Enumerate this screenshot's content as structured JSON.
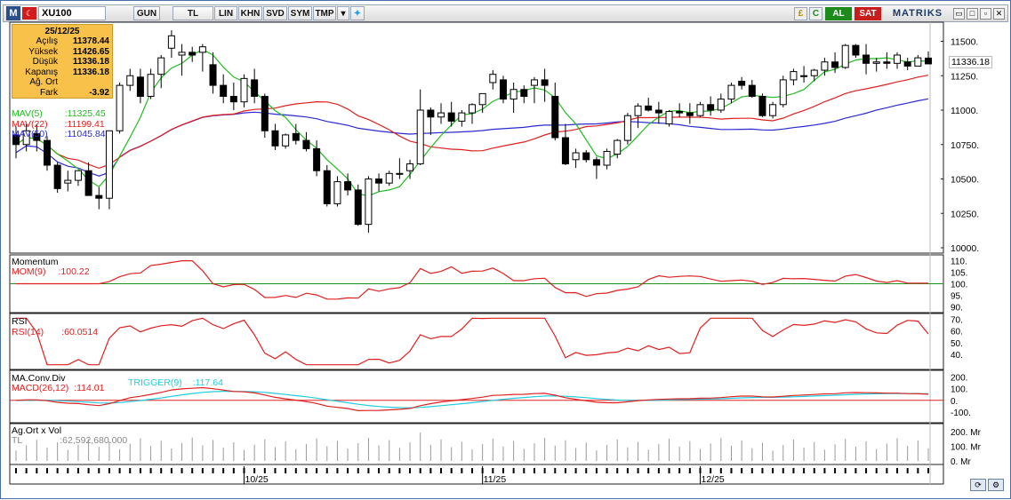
{
  "toolbar": {
    "logo": "M",
    "flag": "☾",
    "symbol": "XU100",
    "buttons": [
      "GUN",
      "TL",
      "LIN",
      "KHN",
      "SVD",
      "SYM",
      "TMP"
    ],
    "right_icons": [
      "£",
      "C"
    ],
    "buy_label": "AL",
    "sell_label": "SAT",
    "brand": "MATRIKS",
    "window_controls": [
      "▭",
      "□",
      "▫",
      "✕"
    ]
  },
  "info_box": {
    "date": "25/12/25",
    "rows": [
      {
        "key": "Açılış",
        "value": "11378.44"
      },
      {
        "key": "Yüksek",
        "value": "11426.65"
      },
      {
        "key": "Düşük",
        "value": "11336.18"
      },
      {
        "key": "Kapanış",
        "value": "11336.18"
      },
      {
        "key": "Ağ. Ort",
        "value": ""
      },
      {
        "key": "Fark",
        "value": "-3.92"
      }
    ]
  },
  "legend": {
    "mav5": {
      "label": "MAV(5)",
      "value": ":11325.45",
      "color": "#22bb22"
    },
    "mav22": {
      "label": "MAV(22)",
      "value": ":11199.41",
      "color": "#e02020"
    },
    "mav50": {
      "label": "MAV(50)",
      "value": ":11045.84",
      "color": "#2a2ad0"
    }
  },
  "last_price": "11336.18",
  "price_axis": [
    "11500.",
    "11250.",
    "11000.",
    "10750.",
    "10500.",
    "10250.",
    "10000."
  ],
  "panels": {
    "momentum": {
      "title": "Momentum",
      "label": "MOM(9)",
      "value": ":100.22",
      "axis": [
        "110.",
        "105.",
        "100.",
        "95.",
        "90."
      ]
    },
    "rsi": {
      "title": "RSI",
      "label": "RSI(14)",
      "value": ":60.0514",
      "axis": [
        "70.",
        "60.",
        "50.",
        "40."
      ]
    },
    "macd": {
      "title": "MA.Conv.Div",
      "label": "MACD(26,12)",
      "value": ":114.01",
      "trigger_label": "TRIGGER(9)",
      "trigger_value": ":117.64",
      "axis": [
        "200.",
        "100.",
        "0.",
        "-100."
      ]
    },
    "volume": {
      "title": "Ag.Ort x Vol",
      "label": "TL",
      "value": ":62,592,680.000",
      "axis": [
        "200. Mr",
        "100. Mr",
        "0. Mr"
      ]
    }
  },
  "date_labels": [
    "10/25",
    "11/25",
    "12/25"
  ],
  "colors": {
    "mav5": "#22bb22",
    "mav22": "#e02020",
    "mav50": "#2a2ad0",
    "trigger": "#22ccdd",
    "grid_green": "#209020",
    "grid_red": "#e02020"
  },
  "chart_data": {
    "type": "candlestick",
    "ylim": [
      10000,
      11600
    ],
    "candles": [
      [
        10820,
        10880,
        10650,
        10750
      ],
      [
        10750,
        10900,
        10700,
        10850
      ],
      [
        10830,
        10900,
        10700,
        10780
      ],
      [
        10780,
        10810,
        10560,
        10600
      ],
      [
        10600,
        10620,
        10400,
        10430
      ],
      [
        10470,
        10560,
        10410,
        10490
      ],
      [
        10490,
        10560,
        10450,
        10560
      ],
      [
        10560,
        10620,
        10380,
        10380
      ],
      [
        10380,
        10440,
        10280,
        10360
      ],
      [
        10360,
        10850,
        10280,
        10850
      ],
      [
        10850,
        11200,
        10830,
        11180
      ],
      [
        11180,
        11300,
        11140,
        11250
      ],
      [
        11240,
        11300,
        11050,
        11100
      ],
      [
        11100,
        11300,
        11080,
        11260
      ],
      [
        11260,
        11400,
        11160,
        11380
      ],
      [
        11450,
        11580,
        11380,
        11540
      ],
      [
        11400,
        11480,
        11250,
        11420
      ],
      [
        11420,
        11460,
        11350,
        11400
      ],
      [
        11420,
        11480,
        11280,
        11460
      ],
      [
        11330,
        11420,
        11120,
        11180
      ],
      [
        11180,
        11260,
        11050,
        11100
      ],
      [
        11100,
        11200,
        11000,
        11060
      ],
      [
        11060,
        11260,
        11020,
        11230
      ],
      [
        11220,
        11300,
        11050,
        11100
      ],
      [
        11100,
        11120,
        10800,
        10850
      ],
      [
        10850,
        10900,
        10710,
        10740
      ],
      [
        10740,
        10830,
        10720,
        10820
      ],
      [
        10830,
        10900,
        10750,
        10780
      ],
      [
        10780,
        10840,
        10700,
        10720
      ],
      [
        10720,
        10780,
        10520,
        10560
      ],
      [
        10560,
        10600,
        10300,
        10320
      ],
      [
        10320,
        10520,
        10300,
        10480
      ],
      [
        10480,
        10540,
        10380,
        10420
      ],
      [
        10420,
        10460,
        10160,
        10170
      ],
      [
        10170,
        10520,
        10110,
        10500
      ],
      [
        10500,
        10540,
        10410,
        10470
      ],
      [
        10470,
        10560,
        10450,
        10540
      ],
      [
        10540,
        10650,
        10500,
        10540
      ],
      [
        10560,
        10640,
        10500,
        10610
      ],
      [
        10610,
        11150,
        10600,
        11000
      ],
      [
        11000,
        11020,
        10820,
        10950
      ],
      [
        10950,
        11050,
        10900,
        10980
      ],
      [
        10980,
        11060,
        10880,
        10920
      ],
      [
        10920,
        11000,
        10880,
        10980
      ],
      [
        10980,
        11050,
        10900,
        11040
      ],
      [
        11040,
        11120,
        10980,
        11120
      ],
      [
        11200,
        11290,
        11150,
        11260
      ],
      [
        11220,
        11250,
        11050,
        11080
      ],
      [
        11080,
        11200,
        10980,
        11150
      ],
      [
        11150,
        11180,
        11050,
        11100
      ],
      [
        11180,
        11240,
        11050,
        11220
      ],
      [
        11220,
        11300,
        11060,
        11180
      ],
      [
        11100,
        11200,
        10780,
        10800
      ],
      [
        10800,
        10900,
        10600,
        10610
      ],
      [
        10640,
        10720,
        10580,
        10690
      ],
      [
        10690,
        10710,
        10620,
        10640
      ],
      [
        10640,
        10660,
        10500,
        10600
      ],
      [
        10600,
        10720,
        10570,
        10700
      ],
      [
        10680,
        10790,
        10650,
        10780
      ],
      [
        10780,
        10980,
        10750,
        10960
      ],
      [
        10960,
        11050,
        10870,
        11030
      ],
      [
        11030,
        11090,
        10990,
        11000
      ],
      [
        11000,
        11060,
        10900,
        10980
      ],
      [
        10900,
        11000,
        10880,
        10990
      ],
      [
        10990,
        11050,
        10950,
        10980
      ],
      [
        10980,
        11050,
        10900,
        10960
      ],
      [
        10960,
        11060,
        10950,
        11040
      ],
      [
        11040,
        11100,
        10960,
        11000
      ],
      [
        11000,
        11120,
        10980,
        11080
      ],
      [
        11080,
        11200,
        11050,
        11180
      ],
      [
        11210,
        11240,
        11150,
        11180
      ],
      [
        11180,
        11220,
        11090,
        11100
      ],
      [
        11100,
        11120,
        10950,
        10960
      ],
      [
        10960,
        11060,
        10940,
        11040
      ],
      [
        11040,
        11250,
        11020,
        11220
      ],
      [
        11220,
        11300,
        11180,
        11280
      ],
      [
        11250,
        11320,
        11200,
        11250
      ],
      [
        11250,
        11300,
        11210,
        11290
      ],
      [
        11290,
        11380,
        11250,
        11350
      ],
      [
        11350,
        11420,
        11270,
        11310
      ],
      [
        11310,
        11480,
        11300,
        11470
      ],
      [
        11470,
        11480,
        11380,
        11400
      ],
      [
        11400,
        11480,
        11260,
        11340
      ],
      [
        11340,
        11380,
        11280,
        11350
      ],
      [
        11350,
        11420,
        11300,
        11340
      ],
      [
        11340,
        11420,
        11300,
        11400
      ],
      [
        11350,
        11380,
        11290,
        11320
      ],
      [
        11320,
        11400,
        11320,
        11380
      ],
      [
        11378,
        11427,
        11336,
        11336
      ]
    ]
  }
}
